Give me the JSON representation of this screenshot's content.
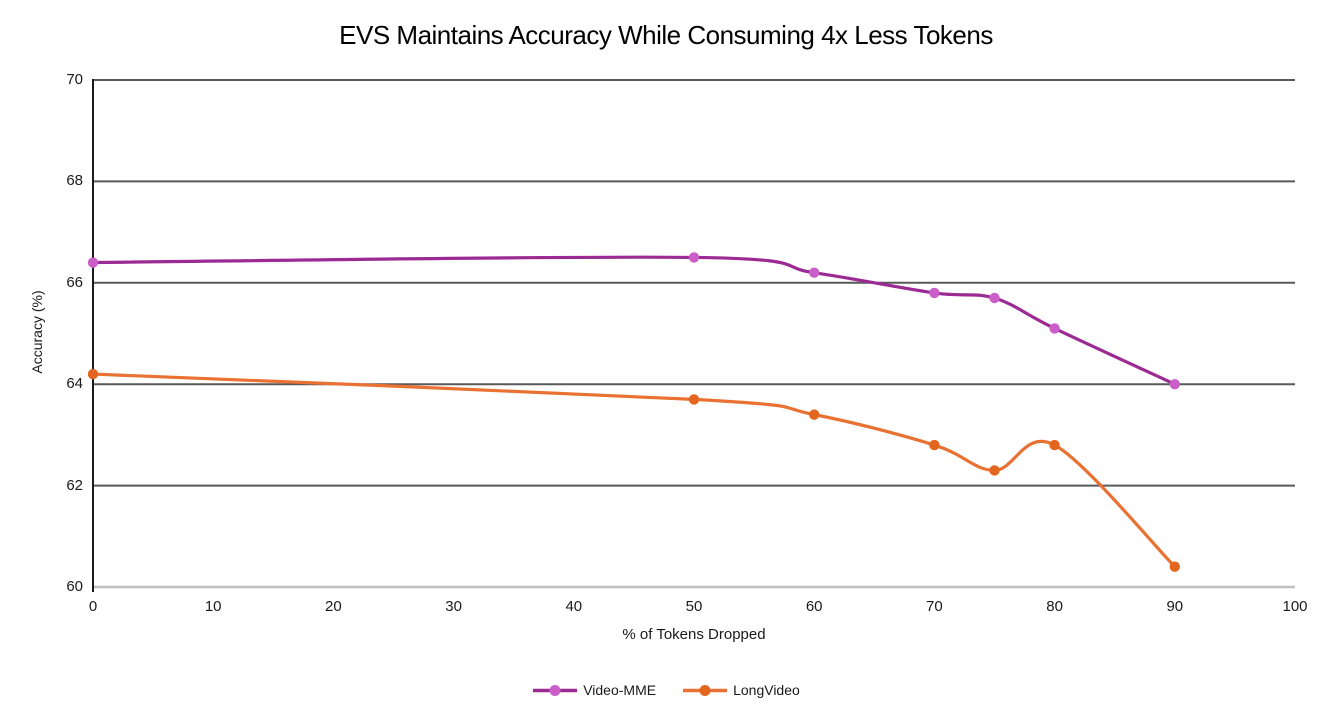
{
  "chart_data": {
    "type": "line",
    "title": "EVS Maintains Accuracy While Consuming 4x Less Tokens",
    "xlabel": "% of Tokens Dropped",
    "ylabel": "Accuracy (%)",
    "xlim": [
      0,
      100
    ],
    "ylim": [
      60,
      70
    ],
    "x_ticks": [
      0,
      10,
      20,
      30,
      40,
      50,
      60,
      70,
      80,
      90,
      100
    ],
    "y_ticks": [
      60,
      62,
      64,
      66,
      68,
      70
    ],
    "grid": "horizontal-only",
    "smooth_lines": true,
    "legend_position": "bottom-center",
    "x": [
      0,
      50,
      60,
      70,
      75,
      80,
      90
    ],
    "series": [
      {
        "name": "Video-MME",
        "values": [
          66.4,
          66.5,
          66.2,
          65.8,
          65.7,
          65.1,
          64.0
        ],
        "line_color": "#9B2A92",
        "marker_color": "#CB5FC9"
      },
      {
        "name": "LongVideo",
        "values": [
          64.2,
          63.7,
          63.4,
          62.8,
          62.3,
          62.8,
          60.4
        ],
        "line_color": "#E97132",
        "marker_color": "#E3661E"
      }
    ]
  },
  "colors": {
    "background": "#FFFFFF",
    "gridline": "#595959",
    "x_axis_line": "#BFBFBF",
    "y_axis_line": "#1A1A1A",
    "tick_text": "#1A1A1A",
    "title_text": "#000000"
  }
}
